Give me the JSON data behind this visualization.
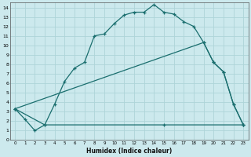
{
  "xlabel": "Humidex (Indice chaleur)",
  "bg_color": "#cce9ed",
  "grid_color": "#aed4d8",
  "line_color": "#1a6e6e",
  "xlim": [
    -0.5,
    23.5
  ],
  "ylim": [
    0,
    14.5
  ],
  "xticks": [
    0,
    1,
    2,
    3,
    4,
    5,
    6,
    7,
    8,
    9,
    10,
    11,
    12,
    13,
    14,
    15,
    16,
    17,
    18,
    19,
    20,
    21,
    22,
    23
  ],
  "yticks": [
    0,
    1,
    2,
    3,
    4,
    5,
    6,
    7,
    8,
    9,
    10,
    11,
    12,
    13,
    14
  ],
  "line1_x": [
    0,
    1,
    2,
    3,
    4,
    5,
    6,
    7,
    8,
    9,
    10,
    11,
    12,
    13,
    14,
    15,
    16,
    17,
    18,
    19,
    20,
    21,
    22,
    23
  ],
  "line1_y": [
    3.3,
    2.2,
    1.0,
    1.6,
    3.8,
    6.2,
    7.6,
    8.2,
    11.0,
    11.2,
    12.3,
    13.2,
    13.5,
    13.5,
    14.3,
    13.5,
    13.3,
    12.5,
    12.0,
    10.3,
    8.2,
    7.2,
    3.8,
    1.6
  ],
  "line2_x": [
    0,
    3,
    15,
    23
  ],
  "line2_y": [
    3.3,
    1.6,
    1.6,
    1.6
  ],
  "line3_x": [
    0,
    19,
    20,
    21,
    22,
    23
  ],
  "line3_y": [
    3.3,
    10.3,
    8.2,
    7.2,
    3.8,
    1.6
  ],
  "spine_color": "#555555",
  "tick_color": "#222222",
  "xlabel_color": "#111111"
}
